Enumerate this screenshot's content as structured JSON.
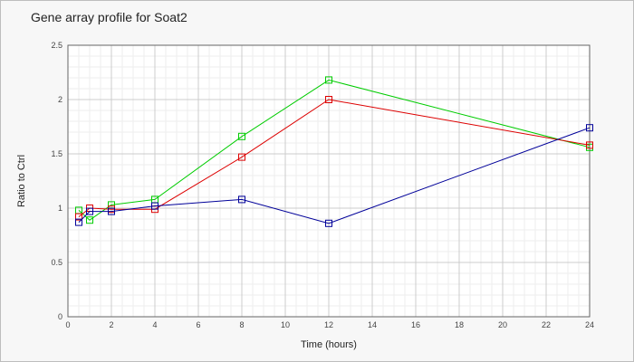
{
  "chart_data": {
    "type": "line",
    "title": "Gene array profile for Soat2",
    "xlabel": "Time (hours)",
    "ylabel": "Ratio to Ctrl",
    "xlim": [
      0,
      24
    ],
    "ylim": [
      0,
      2.5
    ],
    "xticks": [
      "0",
      "2",
      "4",
      "6",
      "8",
      "10",
      "12",
      "14",
      "16",
      "18",
      "20",
      "22",
      "24"
    ],
    "yticks": [
      "0",
      "0.5",
      "1",
      "1.5",
      "2",
      "2.5"
    ],
    "grid": true,
    "marker": "square",
    "x": [
      0.5,
      1,
      2,
      4,
      8,
      12,
      24
    ],
    "series": [
      {
        "color": "#00cc00",
        "values": [
          0.98,
          0.89,
          1.03,
          1.08,
          1.66,
          2.18,
          1.56
        ]
      },
      {
        "color": "#dd0000",
        "values": [
          0.92,
          1.0,
          0.99,
          0.99,
          1.47,
          2.0,
          1.58
        ]
      },
      {
        "color": "#000099",
        "values": [
          0.87,
          0.97,
          0.97,
          1.02,
          1.08,
          0.86,
          1.74
        ]
      }
    ]
  }
}
